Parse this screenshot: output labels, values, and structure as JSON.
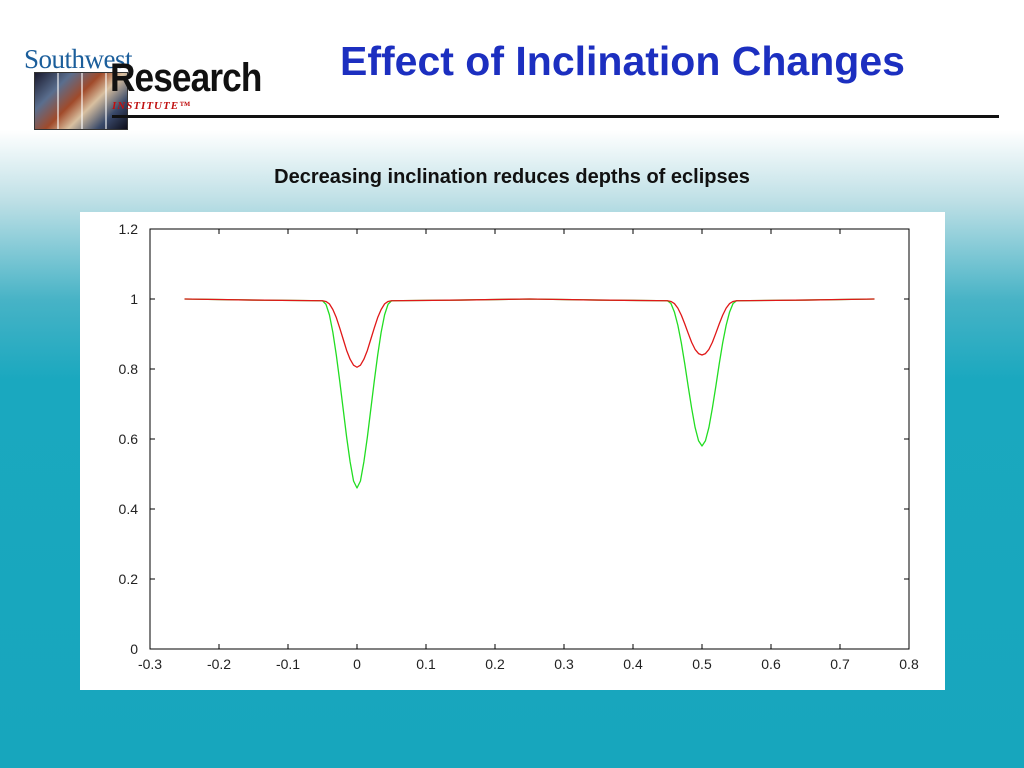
{
  "logo": {
    "line1": "Southwest",
    "line2": "Research",
    "line3": "INSTITUTE™"
  },
  "slide": {
    "title": "Effect of Inclination Changes",
    "subtitle": "Decreasing inclination reduces depths of eclipses"
  },
  "colors": {
    "title": "#1c2fc0",
    "logo_southwest": "#1b5e9b",
    "logo_institute": "#c01010",
    "background_top": "#ffffff",
    "background_bottom": "#17a6bd"
  },
  "chart_data": {
    "type": "line",
    "title": "",
    "xlabel": "",
    "ylabel": "",
    "xlim": [
      -0.3,
      0.8
    ],
    "ylim": [
      0,
      1.2
    ],
    "xticks": [
      "-0.3",
      "-0.2",
      "-0.1",
      "0",
      "0.1",
      "0.2",
      "0.3",
      "0.4",
      "0.5",
      "0.6",
      "0.7",
      "0.8"
    ],
    "yticks": [
      "0",
      "0.2",
      "0.4",
      "0.6",
      "0.8",
      "1",
      "1.2"
    ],
    "grid": false,
    "legend": "none",
    "series": [
      {
        "color": "#e01818",
        "x": [
          -0.25,
          -0.15,
          -0.05,
          -0.045,
          -0.04,
          -0.035,
          -0.03,
          -0.025,
          -0.02,
          -0.015,
          -0.01,
          -0.005,
          0,
          0.005,
          0.01,
          0.015,
          0.02,
          0.025,
          0.03,
          0.035,
          0.04,
          0.045,
          0.05,
          0.15,
          0.25,
          0.35,
          0.45,
          0.455,
          0.46,
          0.465,
          0.47,
          0.475,
          0.48,
          0.485,
          0.49,
          0.495,
          0.5,
          0.505,
          0.51,
          0.515,
          0.52,
          0.525,
          0.53,
          0.535,
          0.54,
          0.545,
          0.55,
          0.65,
          0.75
        ],
        "y": [
          1.0,
          0.997,
          0.995,
          0.993,
          0.986,
          0.97,
          0.947,
          0.917,
          0.885,
          0.853,
          0.828,
          0.811,
          0.805,
          0.811,
          0.828,
          0.853,
          0.885,
          0.917,
          0.947,
          0.97,
          0.986,
          0.993,
          0.995,
          0.997,
          1.0,
          0.997,
          0.995,
          0.993,
          0.987,
          0.974,
          0.954,
          0.929,
          0.902,
          0.876,
          0.856,
          0.844,
          0.84,
          0.844,
          0.856,
          0.876,
          0.902,
          0.929,
          0.954,
          0.974,
          0.987,
          0.993,
          0.995,
          0.997,
          1.0
        ]
      },
      {
        "color": "#22dd22",
        "x": [
          -0.25,
          -0.15,
          -0.05,
          -0.045,
          -0.04,
          -0.035,
          -0.03,
          -0.025,
          -0.02,
          -0.015,
          -0.01,
          -0.005,
          0,
          0.005,
          0.01,
          0.015,
          0.02,
          0.025,
          0.03,
          0.035,
          0.04,
          0.045,
          0.05,
          0.15,
          0.25,
          0.35,
          0.45,
          0.455,
          0.46,
          0.465,
          0.47,
          0.475,
          0.48,
          0.485,
          0.49,
          0.495,
          0.5,
          0.505,
          0.51,
          0.515,
          0.52,
          0.525,
          0.53,
          0.535,
          0.54,
          0.545,
          0.55,
          0.65,
          0.75
        ],
        "y": [
          1.0,
          0.997,
          0.995,
          0.985,
          0.955,
          0.905,
          0.84,
          0.765,
          0.685,
          0.605,
          0.535,
          0.48,
          0.46,
          0.48,
          0.535,
          0.605,
          0.685,
          0.765,
          0.84,
          0.905,
          0.955,
          0.985,
          0.995,
          0.997,
          1.0,
          0.997,
          0.995,
          0.987,
          0.963,
          0.925,
          0.875,
          0.815,
          0.75,
          0.688,
          0.633,
          0.595,
          0.58,
          0.595,
          0.633,
          0.688,
          0.75,
          0.815,
          0.875,
          0.925,
          0.963,
          0.987,
          0.995,
          0.997,
          1.0
        ]
      }
    ]
  }
}
